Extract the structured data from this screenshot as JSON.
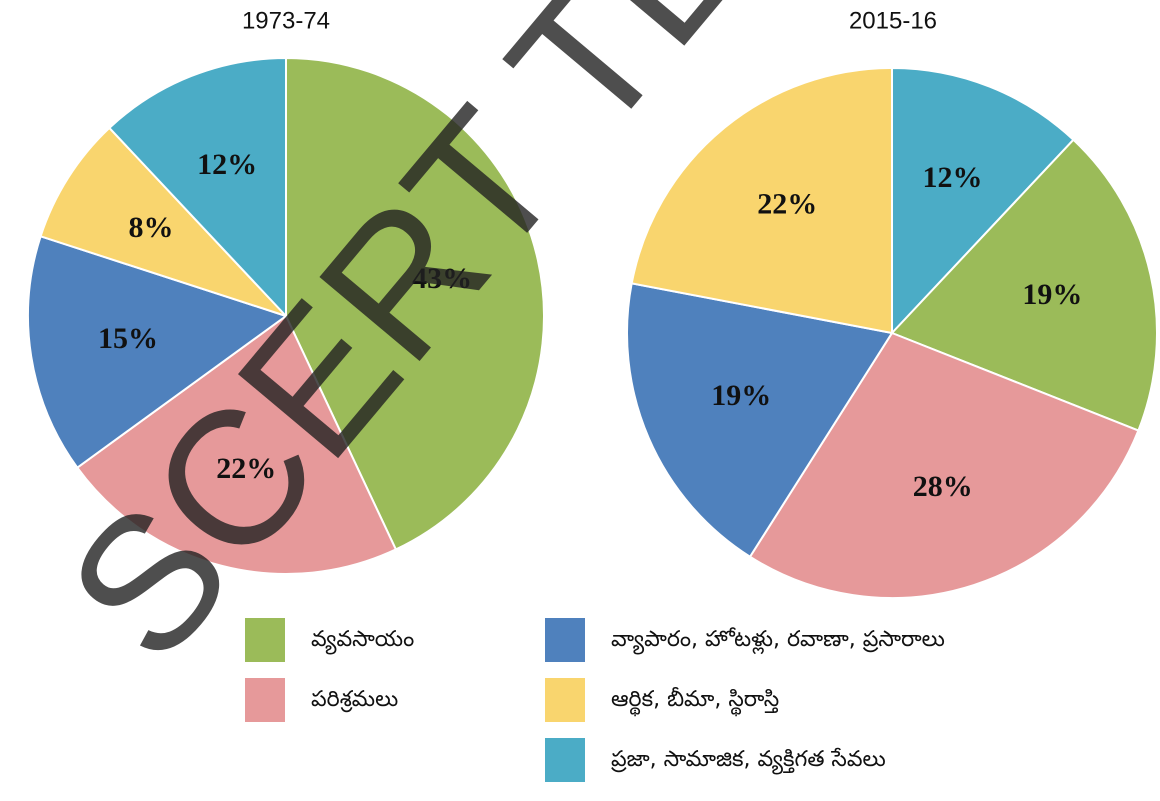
{
  "chart_data": [
    {
      "type": "pie",
      "title": "1973-74",
      "categories": [
        "వ్యవసాయం",
        "పరిశ్రమలు",
        "వ్యాపారం, హోటళ్లు, రవాణా, ప్రసారాలు",
        "ఆర్థిక, బీమా, స్థిరాస్తి",
        "ప్రజా, సామాజిక, వ్యక్తిగత సేవలు"
      ],
      "values": [
        43,
        22,
        15,
        8,
        12
      ],
      "value_labels": [
        "43%",
        "22%",
        "15%",
        "8%",
        "12%"
      ],
      "colors": [
        "#9bbb59",
        "#e6999a",
        "#4f81bd",
        "#f9d56e",
        "#4bacc6"
      ]
    },
    {
      "type": "pie",
      "title": "2015-16",
      "categories": [
        "ప్రజా, సామాజిక, వ్యక్తిగత సేవలు",
        "వ్యవసాయం",
        "పరిశ్రమలు",
        "వ్యాపారం, హోటళ్లు, రవాణా, ప్రసారాలు",
        "ఆర్థిక, బీమా, స్థిరాస్తి"
      ],
      "values": [
        12,
        19,
        28,
        19,
        22
      ],
      "value_labels": [
        "12%",
        "19%",
        "28%",
        "19%",
        "22%"
      ],
      "colors": [
        "#4bacc6",
        "#9bbb59",
        "#e6999a",
        "#4f81bd",
        "#f9d56e"
      ]
    }
  ],
  "watermark": "SCERT TELA"
}
